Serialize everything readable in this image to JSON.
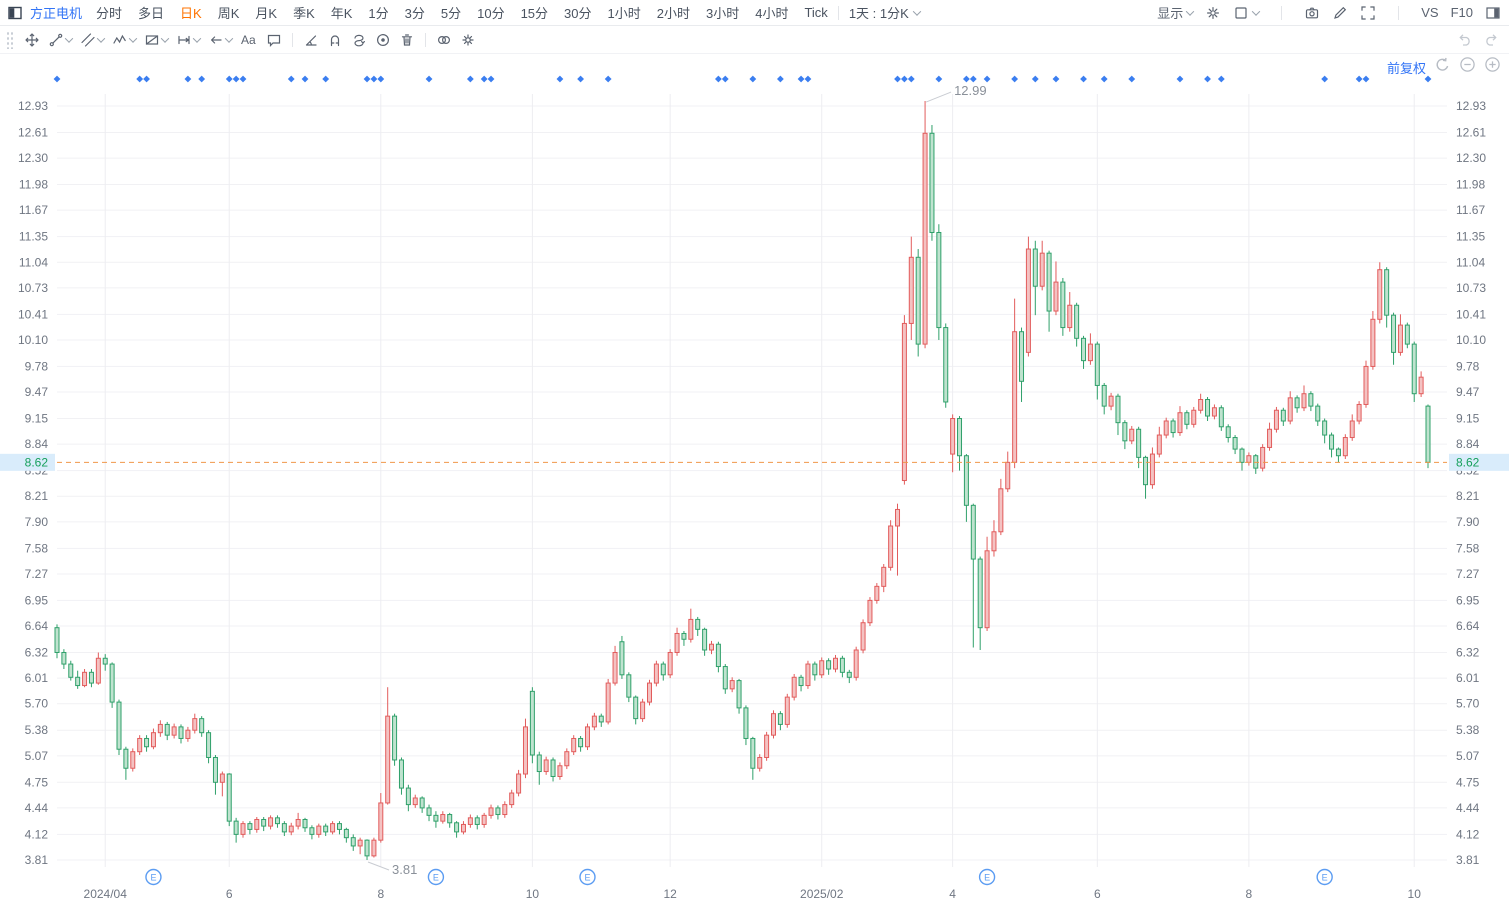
{
  "header": {
    "symbol": "方正电机",
    "tabs": [
      "分时",
      "多日",
      "日K",
      "周K",
      "月K",
      "季K",
      "年K",
      "1分",
      "3分",
      "5分",
      "10分",
      "15分",
      "30分",
      "1小时",
      "2小时",
      "3小时",
      "4小时",
      "Tick"
    ],
    "active_tab": "日K",
    "period_selector": "1天 : 1分K",
    "right": {
      "display_label": "显示",
      "vs_label": "VS",
      "f10_label": "F10"
    },
    "right_icons": [
      "settings-gear-icon",
      "chart-type-icon",
      "camera-icon",
      "pencil-icon",
      "fullscreen-icon",
      "panel-toggle-icon"
    ]
  },
  "draw_toolbar": {
    "tools": [
      {
        "icon": "move-tool-icon",
        "caret": false
      },
      {
        "icon": "trend-line-tool-icon",
        "caret": true
      },
      {
        "icon": "channel-tool-icon",
        "caret": true
      },
      {
        "icon": "wave-tool-icon",
        "caret": true
      },
      {
        "icon": "pattern-tool-icon",
        "caret": true
      },
      {
        "icon": "extend-line-tool-icon",
        "caret": true
      },
      {
        "icon": "arrow-tool-icon",
        "caret": true
      },
      {
        "icon": "text-tool-icon",
        "caret": false
      },
      {
        "icon": "comment-tool-icon",
        "caret": false
      },
      {
        "icon": "divider",
        "caret": false
      },
      {
        "icon": "angle-tool-icon",
        "caret": false
      },
      {
        "icon": "magnet-tool-icon",
        "caret": false
      },
      {
        "icon": "auto-draw-tool-icon",
        "caret": false
      },
      {
        "icon": "target-tool-icon",
        "caret": false
      },
      {
        "icon": "delete-tool-icon",
        "caret": false
      },
      {
        "icon": "divider",
        "caret": false
      },
      {
        "icon": "compare-link-tool-icon",
        "caret": false
      },
      {
        "icon": "draw-settings-tool-icon",
        "caret": false
      }
    ]
  },
  "chart_data": {
    "type": "candlestick",
    "title": "方正电机 日K 前复权",
    "adjust_label": "前复权",
    "current_price": "8.62",
    "y_ticks": [
      "12.93",
      "12.61",
      "12.30",
      "11.98",
      "11.67",
      "11.35",
      "11.04",
      "10.73",
      "10.41",
      "10.10",
      "9.78",
      "9.47",
      "9.15",
      "8.84",
      "8.52",
      "8.21",
      "7.90",
      "7.58",
      "7.27",
      "6.95",
      "6.64",
      "6.32",
      "6.01",
      "5.70",
      "5.38",
      "5.07",
      "4.75",
      "4.44",
      "4.12",
      "3.81"
    ],
    "price_max": 12.93,
    "price_min": 3.81,
    "x_ticks": [
      {
        "label": "2024/04",
        "index": 7
      },
      {
        "label": "6",
        "index": 25
      },
      {
        "label": "8",
        "index": 47
      },
      {
        "label": "10",
        "index": 69
      },
      {
        "label": "12",
        "index": 89
      },
      {
        "label": "2025/02",
        "index": 111
      },
      {
        "label": "4",
        "index": 130
      },
      {
        "label": "6",
        "index": 151
      },
      {
        "label": "8",
        "index": 173
      },
      {
        "label": "10",
        "index": 197
      }
    ],
    "annotations": {
      "high": {
        "text": "12.99",
        "index": 126,
        "price": 12.99
      },
      "low": {
        "text": "3.81",
        "index": 45,
        "price": 3.81
      }
    },
    "event_dot_indices": [
      0,
      12,
      13,
      19,
      21,
      25,
      26,
      27,
      34,
      36,
      39,
      45,
      46,
      47,
      54,
      60,
      62,
      63,
      73,
      76,
      80,
      96,
      97,
      101,
      105,
      108,
      109,
      122,
      123,
      124,
      128,
      132,
      133,
      135,
      139,
      142,
      145,
      149,
      152,
      156,
      163,
      167,
      169,
      184,
      189,
      190,
      199
    ],
    "earnings_marker_indices": [
      14,
      55,
      77,
      135,
      184
    ],
    "earnings_marker_letter": "E",
    "colors": {
      "up": "#e25c5c",
      "up_fill": "#f4c2c2",
      "down": "#2fa06a",
      "down_fill": "#bfe3cf",
      "current_line": "#f0974a",
      "current_label_text": "#16a05c",
      "current_label_bg": "#d9ecfb",
      "event_dot": "#3b7ef0",
      "earnings": "#5b9cf2",
      "grid_h": "#f1f1f4",
      "grid_v": "#ededf1",
      "axis_text": "#6f7682",
      "annotation_text": "#8a9099",
      "accent_orange": "#ff7300",
      "accent_blue": "#3274f6"
    },
    "candles": [
      [
        6.62,
        6.66,
        6.25,
        6.32
      ],
      [
        6.32,
        6.36,
        6.12,
        6.18
      ],
      [
        6.18,
        6.22,
        5.98,
        6.02
      ],
      [
        6.02,
        6.1,
        5.88,
        5.92
      ],
      [
        5.92,
        6.12,
        5.9,
        6.08
      ],
      [
        6.08,
        6.12,
        5.9,
        5.95
      ],
      [
        5.95,
        6.32,
        5.93,
        6.25
      ],
      [
        6.25,
        6.3,
        6.1,
        6.18
      ],
      [
        6.18,
        6.2,
        5.65,
        5.72
      ],
      [
        5.72,
        5.75,
        5.08,
        5.15
      ],
      [
        5.15,
        5.18,
        4.78,
        4.92
      ],
      [
        4.92,
        5.16,
        4.88,
        5.12
      ],
      [
        5.12,
        5.32,
        5.08,
        5.28
      ],
      [
        5.28,
        5.32,
        5.12,
        5.18
      ],
      [
        5.18,
        5.4,
        5.15,
        5.35
      ],
      [
        5.35,
        5.5,
        5.3,
        5.45
      ],
      [
        5.45,
        5.48,
        5.26,
        5.32
      ],
      [
        5.32,
        5.46,
        5.28,
        5.42
      ],
      [
        5.42,
        5.45,
        5.22,
        5.28
      ],
      [
        5.28,
        5.42,
        5.24,
        5.38
      ],
      [
        5.38,
        5.58,
        5.34,
        5.52
      ],
      [
        5.52,
        5.55,
        5.3,
        5.35
      ],
      [
        5.35,
        5.38,
        4.98,
        5.05
      ],
      [
        5.05,
        5.08,
        4.6,
        4.75
      ],
      [
        4.75,
        4.88,
        4.58,
        4.85
      ],
      [
        4.85,
        4.86,
        4.22,
        4.28
      ],
      [
        4.28,
        4.32,
        4.02,
        4.12
      ],
      [
        4.12,
        4.28,
        4.08,
        4.25
      ],
      [
        4.25,
        4.28,
        4.12,
        4.18
      ],
      [
        4.18,
        4.33,
        4.14,
        4.3
      ],
      [
        4.3,
        4.33,
        4.16,
        4.22
      ],
      [
        4.22,
        4.35,
        4.18,
        4.32
      ],
      [
        4.32,
        4.35,
        4.2,
        4.25
      ],
      [
        4.25,
        4.28,
        4.1,
        4.15
      ],
      [
        4.15,
        4.26,
        4.11,
        4.22
      ],
      [
        4.22,
        4.38,
        4.18,
        4.3
      ],
      [
        4.3,
        4.32,
        4.15,
        4.2
      ],
      [
        4.2,
        4.23,
        4.06,
        4.12
      ],
      [
        4.12,
        4.25,
        4.08,
        4.22
      ],
      [
        4.22,
        4.25,
        4.1,
        4.15
      ],
      [
        4.15,
        4.28,
        4.12,
        4.25
      ],
      [
        4.25,
        4.28,
        4.12,
        4.18
      ],
      [
        4.18,
        4.2,
        4.02,
        4.08
      ],
      [
        4.08,
        4.12,
        3.92,
        3.98
      ],
      [
        3.98,
        4.08,
        3.88,
        4.05
      ],
      [
        4.05,
        4.06,
        3.81,
        3.86
      ],
      [
        3.86,
        4.08,
        3.84,
        4.05
      ],
      [
        4.05,
        4.62,
        4.02,
        4.5
      ],
      [
        4.5,
        5.9,
        4.48,
        5.55
      ],
      [
        5.55,
        5.58,
        4.95,
        5.02
      ],
      [
        5.02,
        5.05,
        4.6,
        4.68
      ],
      [
        4.68,
        4.72,
        4.4,
        4.48
      ],
      [
        4.48,
        4.6,
        4.44,
        4.56
      ],
      [
        4.56,
        4.58,
        4.38,
        4.44
      ],
      [
        4.44,
        4.48,
        4.28,
        4.35
      ],
      [
        4.35,
        4.4,
        4.2,
        4.28
      ],
      [
        4.28,
        4.4,
        4.25,
        4.36
      ],
      [
        4.36,
        4.38,
        4.2,
        4.26
      ],
      [
        4.26,
        4.28,
        4.08,
        4.15
      ],
      [
        4.15,
        4.28,
        4.12,
        4.24
      ],
      [
        4.24,
        4.36,
        4.2,
        4.32
      ],
      [
        4.32,
        4.35,
        4.18,
        4.24
      ],
      [
        4.24,
        4.38,
        4.2,
        4.35
      ],
      [
        4.35,
        4.48,
        4.31,
        4.44
      ],
      [
        4.44,
        4.47,
        4.3,
        4.36
      ],
      [
        4.36,
        4.52,
        4.32,
        4.48
      ],
      [
        4.48,
        4.66,
        4.44,
        4.62
      ],
      [
        4.62,
        4.9,
        4.58,
        4.85
      ],
      [
        4.85,
        5.52,
        4.8,
        5.42
      ],
      [
        5.85,
        5.9,
        4.98,
        5.08
      ],
      [
        5.08,
        5.12,
        4.72,
        4.88
      ],
      [
        4.88,
        5.06,
        4.84,
        5.02
      ],
      [
        5.02,
        5.05,
        4.76,
        4.82
      ],
      [
        4.82,
        4.99,
        4.78,
        4.95
      ],
      [
        4.95,
        5.16,
        4.91,
        5.12
      ],
      [
        5.12,
        5.32,
        5.08,
        5.28
      ],
      [
        5.28,
        5.31,
        5.12,
        5.18
      ],
      [
        5.18,
        5.46,
        5.14,
        5.42
      ],
      [
        5.42,
        5.59,
        5.38,
        5.55
      ],
      [
        5.55,
        5.58,
        5.42,
        5.48
      ],
      [
        5.48,
        6.0,
        5.45,
        5.95
      ],
      [
        5.95,
        6.4,
        5.92,
        6.32
      ],
      [
        6.45,
        6.52,
        6.0,
        6.05
      ],
      [
        6.05,
        6.08,
        5.72,
        5.78
      ],
      [
        5.78,
        5.8,
        5.45,
        5.52
      ],
      [
        5.52,
        5.76,
        5.48,
        5.72
      ],
      [
        5.72,
        5.99,
        5.68,
        5.95
      ],
      [
        5.95,
        6.22,
        5.91,
        6.18
      ],
      [
        6.18,
        6.21,
        5.98,
        6.05
      ],
      [
        6.05,
        6.36,
        6.01,
        6.32
      ],
      [
        6.32,
        6.62,
        6.28,
        6.55
      ],
      [
        6.55,
        6.58,
        6.4,
        6.48
      ],
      [
        6.48,
        6.85,
        6.44,
        6.72
      ],
      [
        6.72,
        6.75,
        6.52,
        6.6
      ],
      [
        6.6,
        6.62,
        6.28,
        6.35
      ],
      [
        6.35,
        6.46,
        6.3,
        6.42
      ],
      [
        6.42,
        6.45,
        6.08,
        6.15
      ],
      [
        6.15,
        6.18,
        5.82,
        5.88
      ],
      [
        5.88,
        6.02,
        5.84,
        5.98
      ],
      [
        5.98,
        6.0,
        5.58,
        5.65
      ],
      [
        5.65,
        5.68,
        5.2,
        5.28
      ],
      [
        5.28,
        5.3,
        4.78,
        4.92
      ],
      [
        4.92,
        5.09,
        4.88,
        5.05
      ],
      [
        5.05,
        5.36,
        5.01,
        5.32
      ],
      [
        5.32,
        5.62,
        5.28,
        5.58
      ],
      [
        5.58,
        5.61,
        5.38,
        5.45
      ],
      [
        5.45,
        5.82,
        5.41,
        5.78
      ],
      [
        5.78,
        6.06,
        5.74,
        6.02
      ],
      [
        6.02,
        6.05,
        5.85,
        5.92
      ],
      [
        5.92,
        6.22,
        5.88,
        6.18
      ],
      [
        6.18,
        6.21,
        5.98,
        6.05
      ],
      [
        6.05,
        6.26,
        6.01,
        6.22
      ],
      [
        6.22,
        6.25,
        6.05,
        6.12
      ],
      [
        6.12,
        6.29,
        6.08,
        6.25
      ],
      [
        6.25,
        6.28,
        6.02,
        6.08
      ],
      [
        6.08,
        6.11,
        5.95,
        6.02
      ],
      [
        6.02,
        6.39,
        5.98,
        6.35
      ],
      [
        6.35,
        6.72,
        6.31,
        6.68
      ],
      [
        6.68,
        6.99,
        6.64,
        6.95
      ],
      [
        6.95,
        7.16,
        6.91,
        7.12
      ],
      [
        7.12,
        7.39,
        7.05,
        7.35
      ],
      [
        7.35,
        7.92,
        7.31,
        7.85
      ],
      [
        7.85,
        8.12,
        7.25,
        8.05
      ],
      [
        8.4,
        10.4,
        8.35,
        10.3
      ],
      [
        10.3,
        11.35,
        10.1,
        11.1
      ],
      [
        11.1,
        11.2,
        9.9,
        10.05
      ],
      [
        10.05,
        12.99,
        10.0,
        12.6
      ],
      [
        12.6,
        12.7,
        11.3,
        11.4
      ],
      [
        11.4,
        11.5,
        10.1,
        10.25
      ],
      [
        10.25,
        10.3,
        9.28,
        9.35
      ],
      [
        8.72,
        9.2,
        8.5,
        9.15
      ],
      [
        9.15,
        9.18,
        8.52,
        8.7
      ],
      [
        8.7,
        8.72,
        7.9,
        8.1
      ],
      [
        8.1,
        8.12,
        6.38,
        7.45
      ],
      [
        7.45,
        7.48,
        6.35,
        6.62
      ],
      [
        6.62,
        7.72,
        6.58,
        7.55
      ],
      [
        7.55,
        7.92,
        7.48,
        7.78
      ],
      [
        7.78,
        8.42,
        7.74,
        8.3
      ],
      [
        8.3,
        8.75,
        8.26,
        8.62
      ],
      [
        8.62,
        10.6,
        8.55,
        10.2
      ],
      [
        10.2,
        10.25,
        9.35,
        9.6
      ],
      [
        9.95,
        11.35,
        9.9,
        11.2
      ],
      [
        11.2,
        11.3,
        10.4,
        10.75
      ],
      [
        10.75,
        11.3,
        10.7,
        11.15
      ],
      [
        11.15,
        11.18,
        10.2,
        10.45
      ],
      [
        10.45,
        11.05,
        10.4,
        10.8
      ],
      [
        10.8,
        10.85,
        10.15,
        10.25
      ],
      [
        10.25,
        10.68,
        10.2,
        10.52
      ],
      [
        10.52,
        10.55,
        10.02,
        10.12
      ],
      [
        10.12,
        10.15,
        9.75,
        9.85
      ],
      [
        9.85,
        10.18,
        9.8,
        10.05
      ],
      [
        10.05,
        10.08,
        9.38,
        9.55
      ],
      [
        9.55,
        9.58,
        9.2,
        9.3
      ],
      [
        9.3,
        9.46,
        9.25,
        9.42
      ],
      [
        9.42,
        9.45,
        8.95,
        9.1
      ],
      [
        9.1,
        9.13,
        8.78,
        8.88
      ],
      [
        8.88,
        9.06,
        8.84,
        9.02
      ],
      [
        9.02,
        9.05,
        8.55,
        8.68
      ],
      [
        8.68,
        8.7,
        8.18,
        8.35
      ],
      [
        8.35,
        8.8,
        8.3,
        8.72
      ],
      [
        8.72,
        9.05,
        8.68,
        8.95
      ],
      [
        8.95,
        9.16,
        8.91,
        9.12
      ],
      [
        9.12,
        9.15,
        8.92,
        8.98
      ],
      [
        8.98,
        9.3,
        8.94,
        9.22
      ],
      [
        9.22,
        9.25,
        9.02,
        9.08
      ],
      [
        9.08,
        9.29,
        9.04,
        9.25
      ],
      [
        9.25,
        9.45,
        9.21,
        9.38
      ],
      [
        9.38,
        9.41,
        9.12,
        9.18
      ],
      [
        9.18,
        9.32,
        9.14,
        9.28
      ],
      [
        9.28,
        9.31,
        9.0,
        9.05
      ],
      [
        9.05,
        9.08,
        8.86,
        8.92
      ],
      [
        8.92,
        8.95,
        8.72,
        8.78
      ],
      [
        8.78,
        8.8,
        8.52,
        8.62
      ],
      [
        8.62,
        8.74,
        8.58,
        8.7
      ],
      [
        8.7,
        8.72,
        8.48,
        8.55
      ],
      [
        8.55,
        8.84,
        8.51,
        8.8
      ],
      [
        8.8,
        9.1,
        8.76,
        9.02
      ],
      [
        9.02,
        9.29,
        8.98,
        9.25
      ],
      [
        9.25,
        9.28,
        9.06,
        9.12
      ],
      [
        9.12,
        9.48,
        9.08,
        9.4
      ],
      [
        9.4,
        9.43,
        9.22,
        9.28
      ],
      [
        9.28,
        9.55,
        9.24,
        9.45
      ],
      [
        9.45,
        9.48,
        9.24,
        9.3
      ],
      [
        9.3,
        9.33,
        9.06,
        9.12
      ],
      [
        9.12,
        9.15,
        8.85,
        8.95
      ],
      [
        8.95,
        8.98,
        8.68,
        8.78
      ],
      [
        8.78,
        8.8,
        8.62,
        8.7
      ],
      [
        8.7,
        8.96,
        8.66,
        8.92
      ],
      [
        8.92,
        9.2,
        8.88,
        9.12
      ],
      [
        9.12,
        9.36,
        9.08,
        9.32
      ],
      [
        9.32,
        9.85,
        9.28,
        9.78
      ],
      [
        9.78,
        10.45,
        9.74,
        10.35
      ],
      [
        10.35,
        11.04,
        10.3,
        10.95
      ],
      [
        10.95,
        10.98,
        10.25,
        10.4
      ],
      [
        10.4,
        10.43,
        9.8,
        9.95
      ],
      [
        9.95,
        10.41,
        9.91,
        10.28
      ],
      [
        10.28,
        10.31,
        10.0,
        10.05
      ],
      [
        10.05,
        10.08,
        9.35,
        9.45
      ],
      [
        9.45,
        9.72,
        9.41,
        9.65
      ],
      [
        9.3,
        9.32,
        8.55,
        8.62
      ]
    ]
  }
}
